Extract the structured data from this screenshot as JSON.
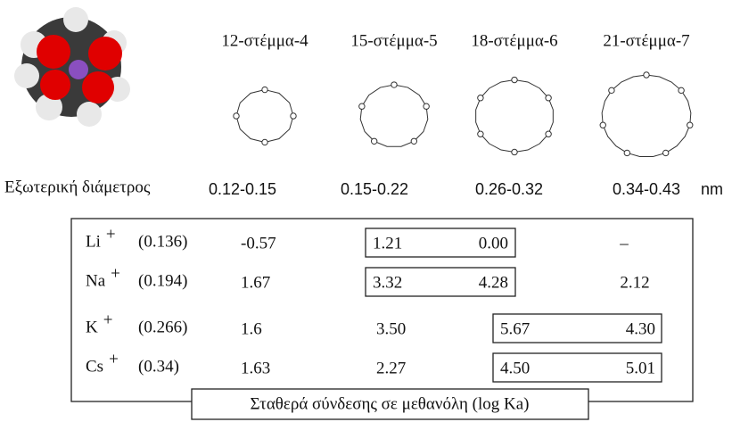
{
  "crowns": [
    "12-στέμμα-4",
    "15-στέμμα-5",
    "18-στέμμα-6",
    "21-στέμμα-7"
  ],
  "diameter_label": "Εξωτερική διάμετρος",
  "diameters": [
    "0.12-0.15",
    "0.15-0.22",
    "0.26-0.32",
    "0.34-0.43"
  ],
  "unit": "nm",
  "table": {
    "rows": [
      {
        "ion": "Li",
        "charge": "+",
        "radius": "(0.136)",
        "values": [
          "-0.57",
          "1.21",
          "0.00",
          "–"
        ]
      },
      {
        "ion": "Na",
        "charge": "+",
        "radius": "(0.194)",
        "values": [
          "1.67",
          "3.32",
          "4.28",
          "2.12"
        ]
      },
      {
        "ion": "K",
        "charge": "+",
        "radius": "(0.266)",
        "values": [
          "1.6",
          "3.50",
          "5.67",
          "4.30"
        ]
      },
      {
        "ion": "Cs",
        "charge": "+",
        "radius": "(0.34)",
        "values": [
          "1.63",
          "2.27",
          "4.50",
          "5.01"
        ]
      }
    ],
    "caption": "Σταθερά σύνδεσης σε μεθανόλη (log Ka)"
  }
}
